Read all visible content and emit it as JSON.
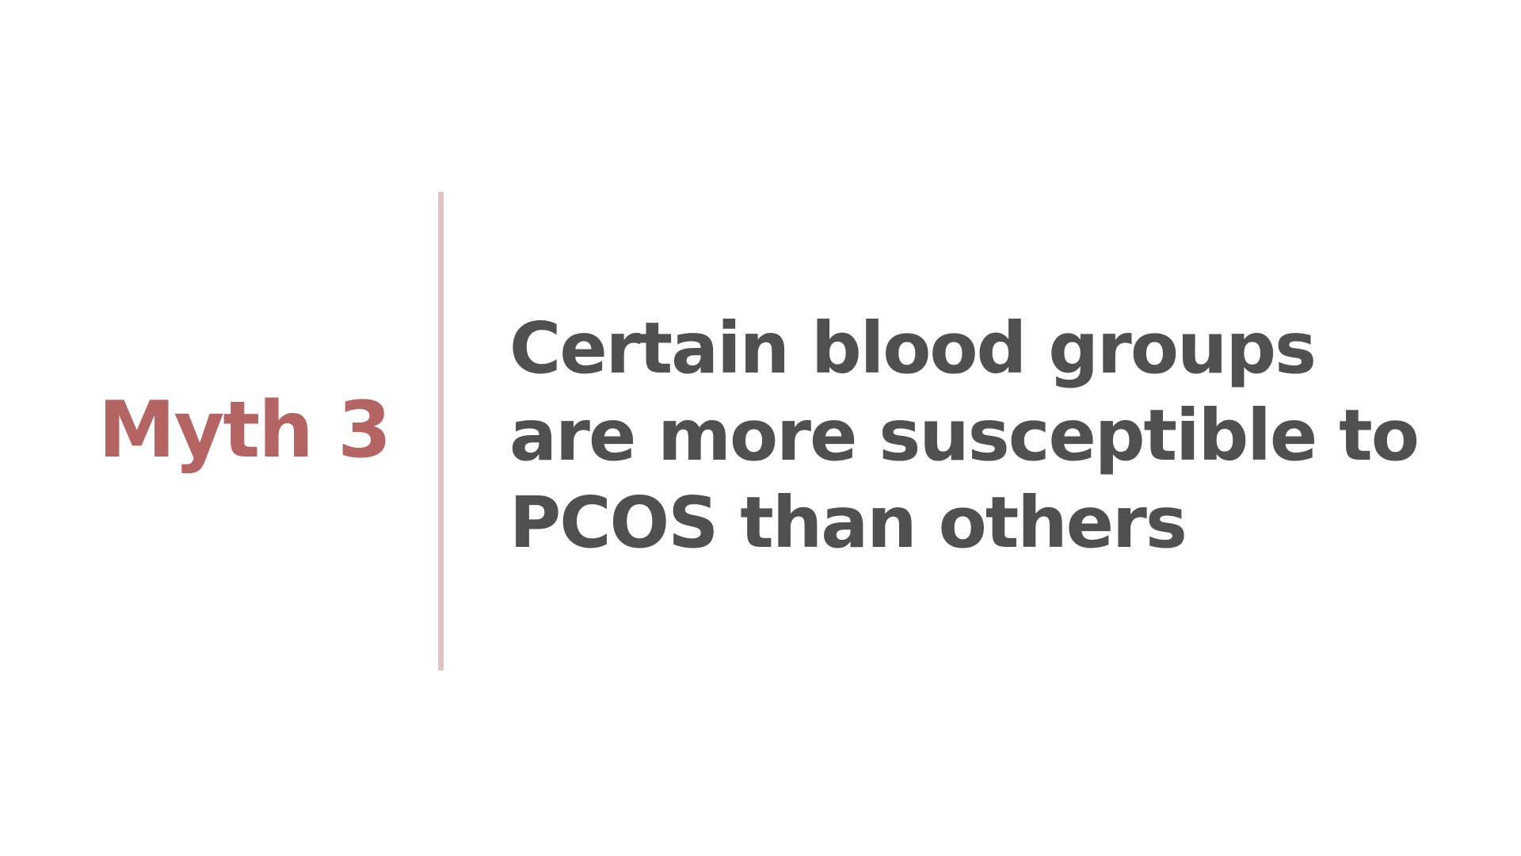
{
  "slide": {
    "label": "Myth 3",
    "statement_lines": [
      "Certain blood groups",
      "are more susceptible to",
      "PCOS than others"
    ],
    "colors": {
      "label": "#b56464",
      "divider": "#e2c2c4",
      "statement": "#505050",
      "background": "#ffffff"
    }
  }
}
